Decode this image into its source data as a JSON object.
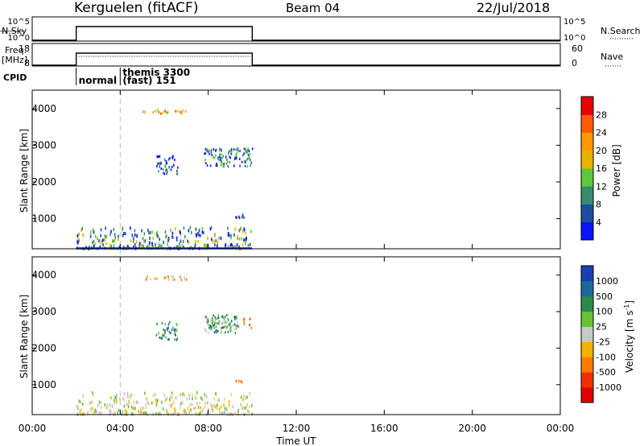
{
  "header": {
    "station": "Kerguelen (fitACF)",
    "beam": "Beam 04",
    "date": "22/Jul/2018"
  },
  "status_panels": {
    "nsky_label": "N.Sky",
    "nsky_ticks": [
      "10^5",
      "10^0"
    ],
    "nsky_right_ticks": [
      "10^5",
      "10^0"
    ],
    "nsearch_label": "N.Search",
    "freq_label": "Freq.",
    "freq_unit": "[MHz]",
    "freq_ticks": [
      "18",
      "8"
    ],
    "nave_ticks": [
      "60",
      "0"
    ],
    "nave_label": "Nave",
    "cpid_label": "CPID",
    "cpid_segments": [
      {
        "start_h": 2.0,
        "text": "normal"
      },
      {
        "start_h": 4.0,
        "text": "themis 3300"
      },
      {
        "start_h": 4.0,
        "text": "(fast)  151"
      }
    ],
    "active_interval_h": [
      2.0,
      10.0
    ]
  },
  "x_axis": {
    "label": "Time UT",
    "ticks": [
      "00:00",
      "04:00",
      "08:00",
      "12:00",
      "16:00",
      "20:00",
      "00:00"
    ],
    "tick_hours": [
      0,
      4,
      8,
      12,
      16,
      20,
      24
    ],
    "dashed_marker_h": 4.0
  },
  "chart_data": [
    {
      "type": "heatmap",
      "parameter": "Power",
      "ylabel": "Slant Range [km]",
      "yticks": [
        "1000",
        "2000",
        "3000",
        "4000"
      ],
      "ylim": [
        180,
        4500
      ],
      "xlim_hours": [
        0,
        24
      ],
      "colorbar": {
        "label": "Power [dB]",
        "ticks": [
          "4",
          "8",
          "12",
          "16",
          "20",
          "24",
          "28"
        ],
        "range": [
          0,
          32
        ],
        "colors": [
          "#0a14ff",
          "#1d4ea0",
          "#3a8a6e",
          "#5ec83a",
          "#e6b400",
          "#ff9a00",
          "#ff5a00",
          "#e80000"
        ]
      },
      "echo_regions": [
        {
          "t": [
            2.0,
            10.0
          ],
          "range_km": [
            180,
            780
          ],
          "level": "4-20 dB, mostly low"
        },
        {
          "t": [
            5.0,
            7.0
          ],
          "range_km": [
            3850,
            3950
          ],
          "level": "12-24 dB"
        },
        {
          "t": [
            5.6,
            6.6
          ],
          "range_km": [
            2200,
            2700
          ],
          "level": "4-8 dB"
        },
        {
          "t": [
            7.8,
            10.0
          ],
          "range_km": [
            2400,
            2900
          ],
          "level": "4-12 dB"
        },
        {
          "t": [
            9.2,
            9.6
          ],
          "range_km": [
            1000,
            1100
          ],
          "level": "4-8 dB"
        }
      ]
    },
    {
      "type": "heatmap",
      "parameter": "Velocity",
      "ylabel": "Slant Range [km]",
      "yticks": [
        "1000",
        "2000",
        "3000",
        "4000"
      ],
      "ylim": [
        180,
        4500
      ],
      "xlim_hours": [
        0,
        24
      ],
      "colorbar": {
        "label": "Velocity  [m s",
        "label_exp": "-1",
        "label_close": "]",
        "ticks": [
          "1000",
          "500",
          "100",
          "25",
          "-25",
          "-100",
          "-500",
          "-1000"
        ],
        "colors": [
          "#1840b0",
          "#1d6a9a",
          "#2e8a4a",
          "#66c23a",
          "#c8c8c8",
          "#f0b400",
          "#ff7a00",
          "#f03000",
          "#e00000"
        ]
      },
      "echo_regions": [
        {
          "t": [
            2.0,
            10.0
          ],
          "range_km": [
            180,
            780
          ],
          "level": "-25 to 25 m/s (grey/yellow)"
        },
        {
          "t": [
            5.0,
            7.0
          ],
          "range_km": [
            3850,
            3950
          ],
          "level": "-25 to -100 m/s"
        },
        {
          "t": [
            5.6,
            6.6
          ],
          "range_km": [
            2200,
            2700
          ],
          "level": "25 to 500 m/s"
        },
        {
          "t": [
            7.8,
            9.3
          ],
          "range_km": [
            2400,
            2900
          ],
          "level": "100 to 500 m/s"
        },
        {
          "t": [
            9.3,
            10.0
          ],
          "range_km": [
            2500,
            2850
          ],
          "level": "-100 to -500 m/s"
        },
        {
          "t": [
            9.2,
            9.6
          ],
          "range_km": [
            1050,
            1100
          ],
          "level": "-100 m/s"
        }
      ]
    }
  ]
}
